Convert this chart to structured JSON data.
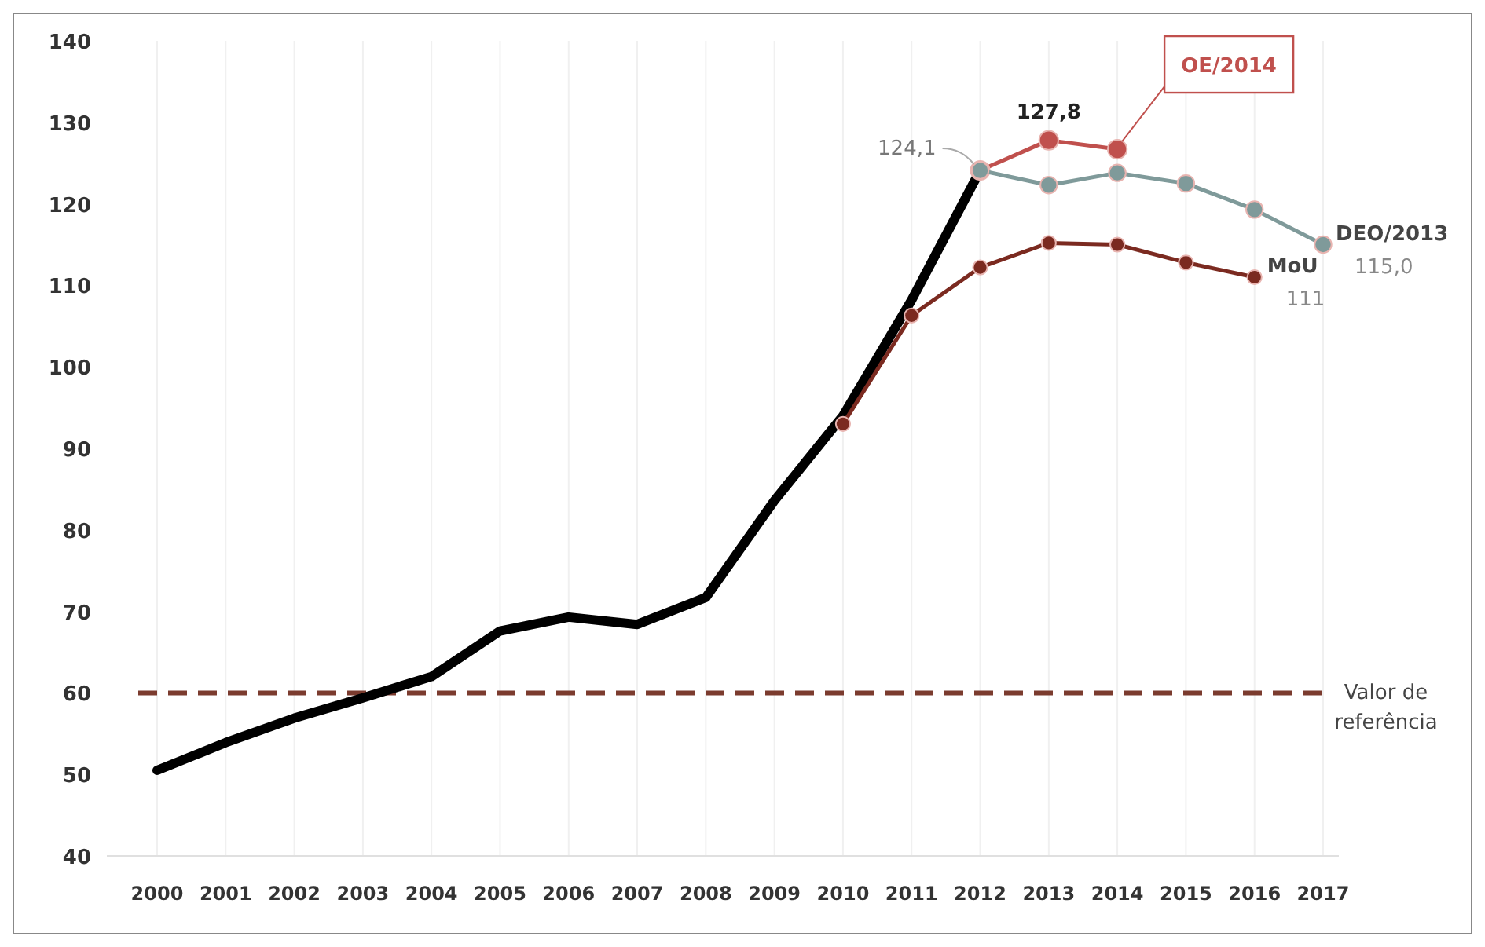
{
  "chart_data": {
    "type": "line",
    "categories": [
      "2000",
      "2001",
      "2002",
      "2003",
      "2004",
      "2005",
      "2006",
      "2007",
      "2008",
      "2009",
      "2010",
      "2011",
      "2012",
      "2013",
      "2014",
      "2015",
      "2016",
      "2017"
    ],
    "ylim": [
      40,
      140
    ],
    "yticks": [
      40,
      50,
      60,
      70,
      80,
      90,
      100,
      110,
      120,
      130,
      140
    ],
    "grid": "x",
    "series": [
      {
        "color": "#000000",
        "marker": "none",
        "values": [
          50.5,
          53.9,
          56.9,
          59.4,
          62.0,
          67.6,
          69.3,
          68.4,
          71.7,
          83.6,
          94.0,
          108.2,
          124.1,
          null,
          null,
          null,
          null,
          null
        ]
      },
      {
        "name": "OE/2014",
        "color": "#c0504d",
        "marker": "circle",
        "values": [
          null,
          null,
          null,
          null,
          null,
          null,
          null,
          null,
          null,
          null,
          null,
          null,
          124.1,
          127.8,
          126.7,
          null,
          null,
          null
        ],
        "value_labels": [
          null,
          null,
          null,
          null,
          null,
          null,
          null,
          null,
          null,
          null,
          null,
          null,
          null,
          "127,8",
          null,
          null,
          null,
          null
        ]
      },
      {
        "name": "DEO/2013",
        "color": "#7f9a9a",
        "marker": "circle",
        "values": [
          null,
          null,
          null,
          null,
          null,
          null,
          null,
          null,
          null,
          null,
          null,
          null,
          124.1,
          122.3,
          123.8,
          122.5,
          119.3,
          115.0
        ],
        "value_labels": [
          null,
          null,
          null,
          null,
          null,
          null,
          null,
          null,
          null,
          null,
          null,
          null,
          "124,1",
          null,
          null,
          null,
          null,
          "115,0"
        ]
      },
      {
        "name": "MoU",
        "color": "#7b2a20",
        "marker": "circle",
        "values": [
          null,
          null,
          null,
          null,
          null,
          null,
          null,
          null,
          null,
          null,
          93.0,
          106.3,
          112.2,
          115.2,
          115.0,
          112.8,
          111.0,
          null
        ],
        "value_labels": [
          null,
          null,
          null,
          null,
          null,
          null,
          null,
          null,
          null,
          null,
          null,
          null,
          null,
          null,
          null,
          null,
          "111",
          null
        ]
      }
    ],
    "ref_lines": [
      {
        "axis": "y",
        "value": 60,
        "label": "Valor de referência",
        "color": "#7b3b2e",
        "line_style": "dashed"
      }
    ]
  }
}
